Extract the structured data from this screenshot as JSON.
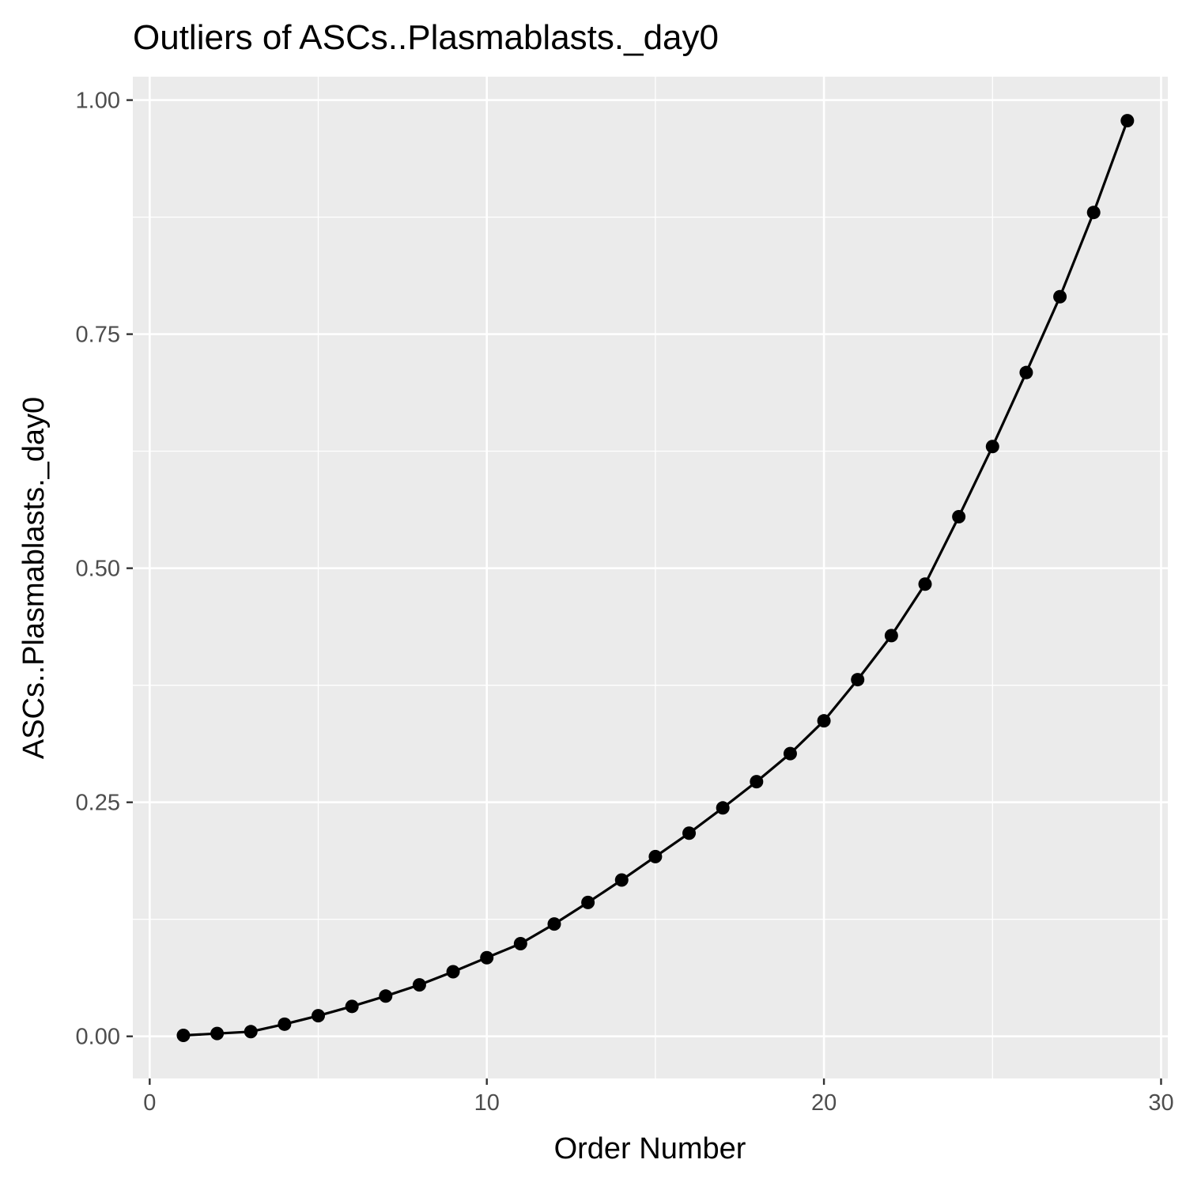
{
  "chart_data": {
    "type": "line",
    "title": "Outliers of ASCs..Plasmablasts._day0",
    "xlabel": "Order Number",
    "ylabel": "ASCs..Plasmablasts._day0",
    "xlim": [
      -0.5,
      30.2
    ],
    "ylim": [
      -0.045,
      1.025
    ],
    "x_ticks": [
      0,
      10,
      20,
      30
    ],
    "x_tick_labels": [
      "0",
      "10",
      "20",
      "30"
    ],
    "y_ticks": [
      0,
      0.25,
      0.5,
      0.75,
      1.0
    ],
    "y_tick_labels": [
      "0.00",
      "0.25",
      "0.50",
      "0.75",
      "1.00"
    ],
    "grid": true,
    "series": [
      {
        "markers": true,
        "color": "#000000",
        "x": [
          1,
          2,
          3,
          4,
          5,
          6,
          7,
          8,
          9,
          10,
          11,
          12,
          13,
          14,
          15,
          16,
          17,
          18,
          19,
          20,
          21,
          22,
          23,
          24,
          25,
          26,
          27,
          28,
          29
        ],
        "y": [
          0.001,
          0.003,
          0.005,
          0.013,
          0.022,
          0.032,
          0.043,
          0.055,
          0.069,
          0.084,
          0.099,
          0.12,
          0.143,
          0.167,
          0.192,
          0.217,
          0.244,
          0.272,
          0.302,
          0.337,
          0.381,
          0.428,
          0.483,
          0.555,
          0.63,
          0.709,
          0.79,
          0.88,
          0.978
        ]
      }
    ]
  }
}
